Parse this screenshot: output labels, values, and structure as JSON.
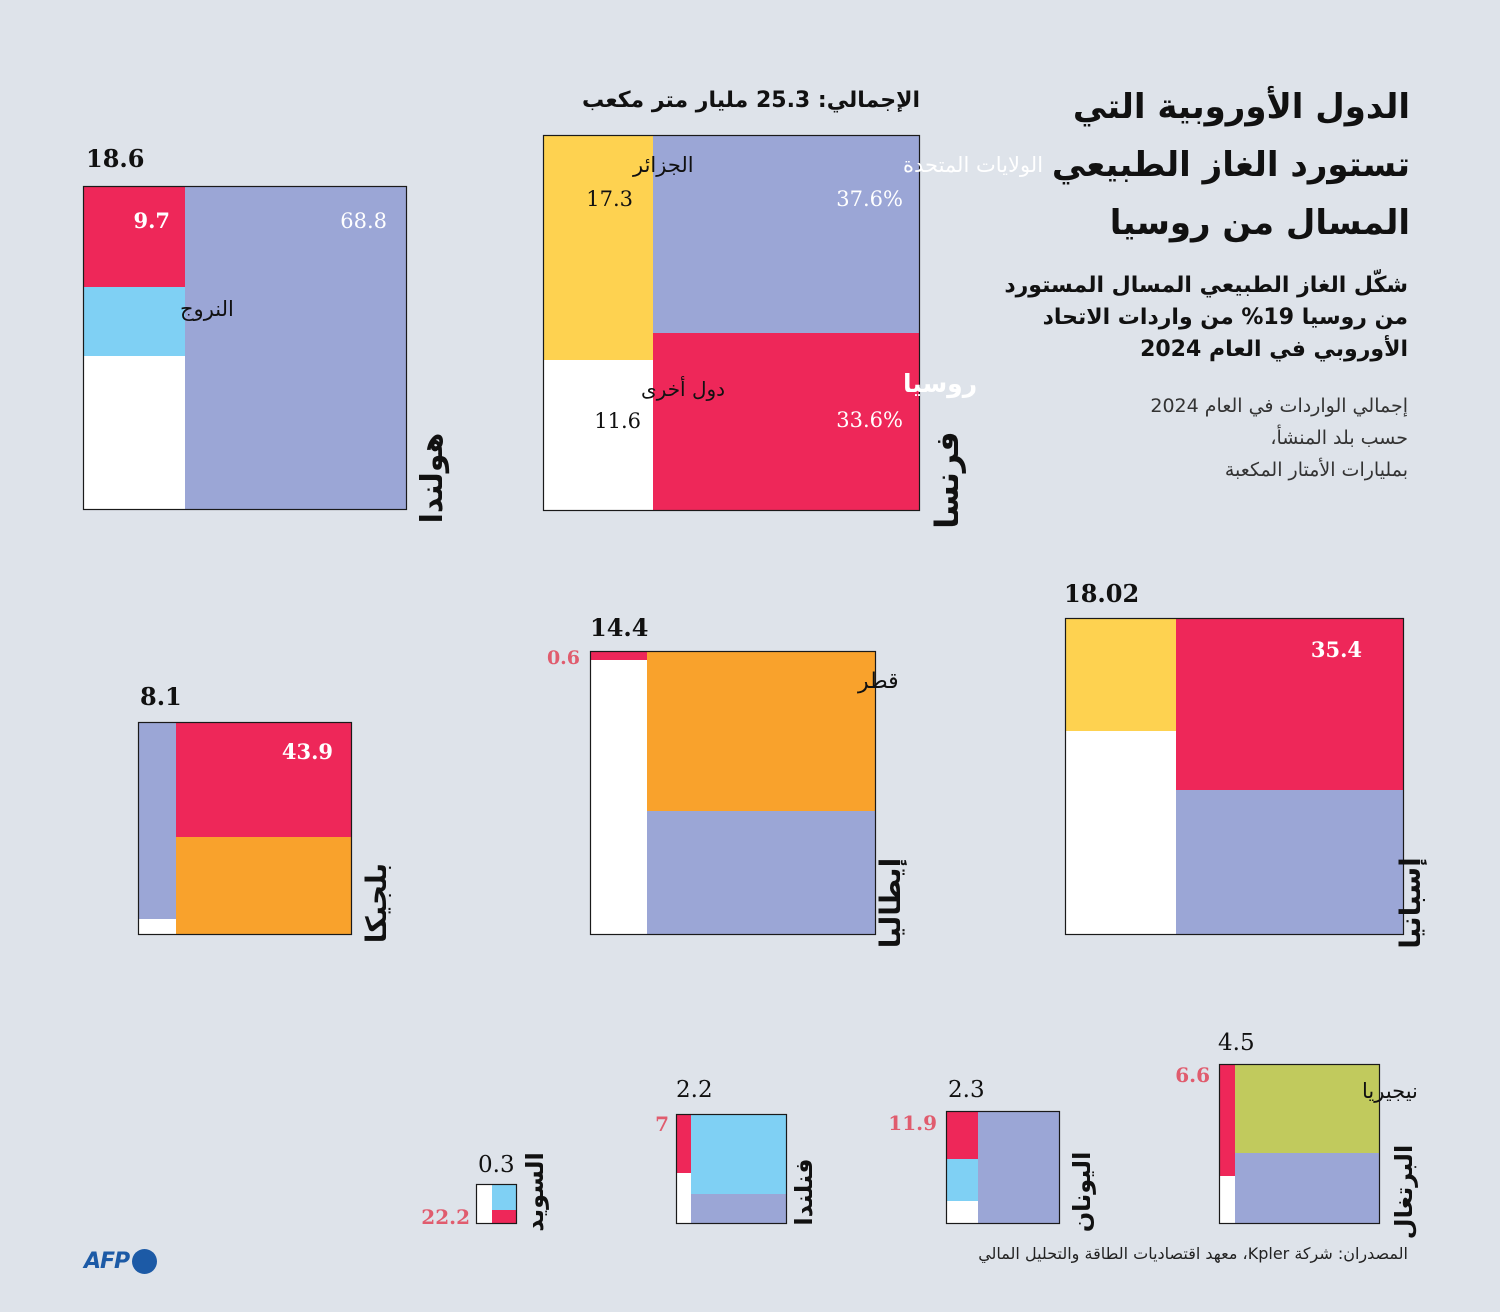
{
  "title_lines": [
    "الدول الأوروبية التي",
    "تستورد الغاز الطبيعي",
    "المسال من روسيا"
  ],
  "subtitle_lines": [
    "شكّل الغاز الطبيعي المسال المستورد",
    "من روسيا 19% من واردات الاتحاد",
    "الأوروبي في العام 2024"
  ],
  "unit_lines": [
    "إجمالي الواردات في العام 2024",
    "حسب بلد المنشأ،",
    "بمليارات الأمتار المكعبة"
  ],
  "total_label": "الإجمالي: 25.3 مليار متر مكعب",
  "source": "المصدران: شركة Kpler، معهد اقتصاديات الطاقة والتحليل المالي",
  "logo": "AFP",
  "colors": {
    "russia": "#ee2759",
    "usa": "#9ba6d6",
    "algeria": "#fed250",
    "qatar": "#f9a22c",
    "norway": "#7fd0f4",
    "nigeria": "#c1ca5d",
    "other": "#ffffff",
    "background": "#dee3ea",
    "red_text": "#e05c6e"
  },
  "chart_data": {
    "type": "treemap",
    "unit": "مليار متر مكعب",
    "countries": [
      {
        "id": "france",
        "name": "فرنسا",
        "total": "25.3",
        "segments": [
          {
            "key": "algeria",
            "label": "الجزائر",
            "value": "17.3"
          },
          {
            "key": "usa",
            "label": "الولايات المتحدة",
            "value": "37.6%"
          },
          {
            "key": "other",
            "label": "دول أخرى",
            "value": "11.6"
          },
          {
            "key": "russia",
            "label": "روسيا",
            "value": "33.6%"
          }
        ]
      },
      {
        "id": "netherlands",
        "name": "هولندا",
        "total": "18.6",
        "segments": [
          {
            "key": "russia",
            "label": "",
            "value": "9.7"
          },
          {
            "key": "norway",
            "label": "النروج",
            "value": ""
          },
          {
            "key": "other",
            "label": "",
            "value": ""
          },
          {
            "key": "usa",
            "label": "",
            "value": "68.8"
          }
        ]
      },
      {
        "id": "spain",
        "name": "إسبانيا",
        "total": "18.02",
        "segments": [
          {
            "key": "algeria",
            "label": "",
            "value": ""
          },
          {
            "key": "other",
            "label": "",
            "value": ""
          },
          {
            "key": "russia",
            "label": "",
            "value": "35.4"
          },
          {
            "key": "usa",
            "label": "",
            "value": ""
          }
        ]
      },
      {
        "id": "italy",
        "name": "إيطاليا",
        "total": "14.4",
        "segments": [
          {
            "key": "russia",
            "label": "",
            "value": "0.6"
          },
          {
            "key": "other",
            "label": "",
            "value": ""
          },
          {
            "key": "qatar",
            "label": "قطر",
            "value": ""
          },
          {
            "key": "usa",
            "label": "",
            "value": ""
          }
        ]
      },
      {
        "id": "belgium",
        "name": "بلجيكا",
        "total": "8.1",
        "segments": [
          {
            "key": "usa",
            "label": "",
            "value": ""
          },
          {
            "key": "other",
            "label": "",
            "value": ""
          },
          {
            "key": "russia",
            "label": "",
            "value": "43.9"
          },
          {
            "key": "qatar",
            "label": "",
            "value": ""
          }
        ]
      },
      {
        "id": "portugal",
        "name": "البرتغال",
        "total": "4.5",
        "segments": [
          {
            "key": "russia",
            "label": "",
            "value": "6.6"
          },
          {
            "key": "other",
            "label": "",
            "value": ""
          },
          {
            "key": "nigeria",
            "label": "نيجيريا",
            "value": ""
          },
          {
            "key": "usa",
            "label": "",
            "value": ""
          }
        ]
      },
      {
        "id": "greece",
        "name": "اليونان",
        "total": "2.3",
        "segments": [
          {
            "key": "russia",
            "label": "",
            "value": "11.9"
          },
          {
            "key": "norway",
            "label": "",
            "value": ""
          },
          {
            "key": "other",
            "label": "",
            "value": ""
          },
          {
            "key": "usa",
            "label": "",
            "value": ""
          }
        ]
      },
      {
        "id": "finland",
        "name": "فنلندا",
        "total": "2.2",
        "segments": [
          {
            "key": "russia",
            "label": "",
            "value": "7"
          },
          {
            "key": "other",
            "label": "",
            "value": ""
          },
          {
            "key": "norway",
            "label": "",
            "value": ""
          },
          {
            "key": "usa",
            "label": "",
            "value": ""
          }
        ]
      },
      {
        "id": "sweden",
        "name": "السويد",
        "total": "0.3",
        "segments": [
          {
            "key": "other",
            "label": "",
            "value": ""
          },
          {
            "key": "norway",
            "label": "",
            "value": ""
          },
          {
            "key": "russia",
            "label": "",
            "value": "22.2"
          }
        ]
      }
    ]
  }
}
